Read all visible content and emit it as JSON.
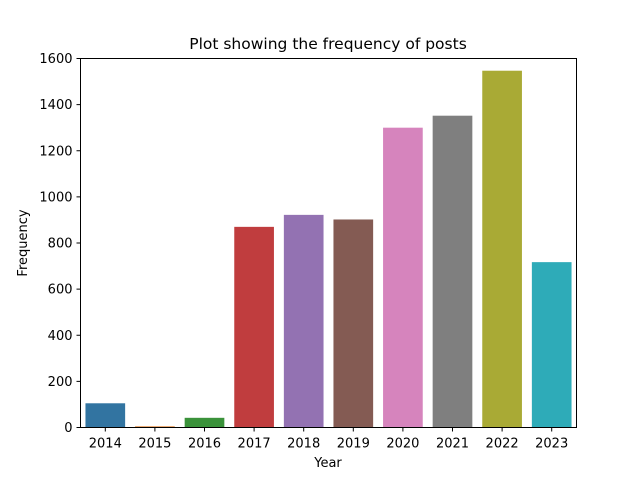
{
  "chart_data": {
    "type": "bar",
    "title": "Plot showing the frequency of posts",
    "xlabel": "Year",
    "ylabel": "Frequency",
    "categories": [
      "2014",
      "2015",
      "2016",
      "2017",
      "2018",
      "2019",
      "2020",
      "2021",
      "2022",
      "2023"
    ],
    "values": [
      105,
      5,
      42,
      870,
      922,
      902,
      1300,
      1352,
      1547,
      717
    ],
    "colors": [
      "#3274a1",
      "#e1812c",
      "#3a923a",
      "#c03d3e",
      "#9372b2",
      "#845b53",
      "#d684bd",
      "#7f7f7f",
      "#a9aa35",
      "#2eabb8"
    ],
    "ylim": [
      0,
      1600
    ],
    "yticks": [
      0,
      200,
      400,
      600,
      800,
      1000,
      1200,
      1400,
      1600
    ],
    "ytick_labels": [
      "0",
      "200",
      "400",
      "600",
      "800",
      "1000",
      "1200",
      "1400",
      "1600"
    ],
    "grid": false,
    "legend": false
  }
}
